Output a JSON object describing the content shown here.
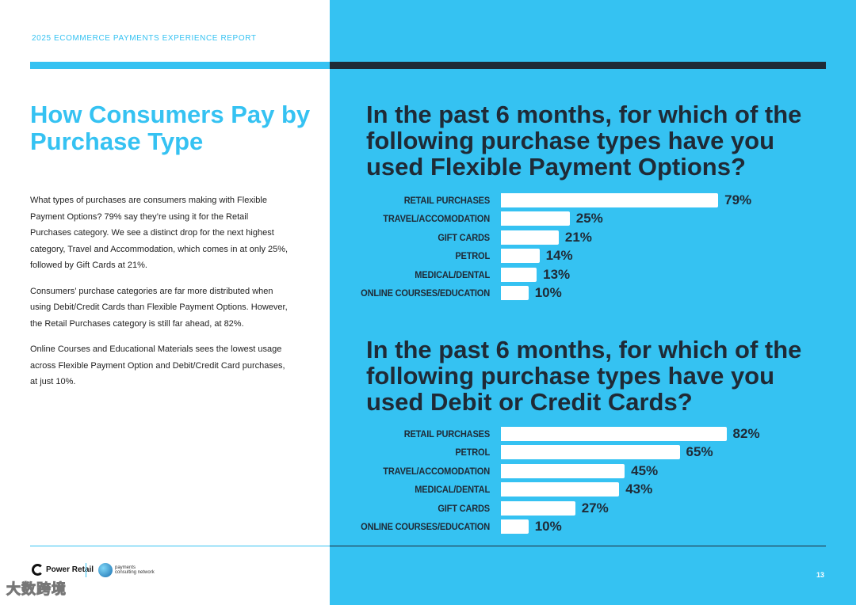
{
  "header": {
    "report_label": "2025 ECOMMERCE PAYMENTS EXPERIENCE REPORT"
  },
  "page": {
    "title": "How Consumers Pay by Purchase Type",
    "paragraphs": [
      "What types of purchases are consumers making with Flexible Payment Options? 79% say they’re using it for the Retail Purchases category. We see a distinct drop for the next highest category, Travel and Accommodation, which comes in at only 25%, followed by Gift Cards at 21%.",
      "Consumers’ purchase categories are far more distributed when using Debit/Credit Cards than Flexible Payment Options. However, the Retail Purchases category is still far ahead, at 82%.",
      "Online Courses and Educational Materials sees the lowest usage across Flexible Payment Option and Debit/Credit Card purchases, at just 10%."
    ],
    "page_number": "13"
  },
  "chart_data": [
    {
      "type": "bar",
      "orientation": "horizontal",
      "title": "In the past 6 months, for which of the following purchase types have you used Flexible Payment Options?",
      "categories": [
        "RETAIL PURCHASES",
        "TRAVEL/ACCOMODATION",
        "GIFT CARDS",
        "PETROL",
        "MEDICAL/DENTAL",
        "ONLINE COURSES/EDUCATION"
      ],
      "values": [
        79,
        25,
        21,
        14,
        13,
        10
      ],
      "labels": [
        "79%",
        "25%",
        "21%",
        "14%",
        "13%",
        "10%"
      ],
      "xlim": [
        0,
        100
      ],
      "bar_color": "#ffffff"
    },
    {
      "type": "bar",
      "orientation": "horizontal",
      "title": "In the past 6 months, for which of the following purchase types have you used Debit or Credit Cards?",
      "categories": [
        "RETAIL PURCHASES",
        "PETROL",
        "TRAVEL/ACCOMODATION",
        "MEDICAL/DENTAL",
        "GIFT CARDS",
        "ONLINE COURSES/EDUCATION"
      ],
      "values": [
        82,
        65,
        45,
        43,
        27,
        10
      ],
      "labels": [
        "82%",
        "65%",
        "45%",
        "43%",
        "27%",
        "10%"
      ],
      "xlim": [
        0,
        100
      ],
      "bar_color": "#ffffff"
    }
  ],
  "footer": {
    "power_retail_logo": "Power Retail",
    "pcn_logo": "payments consulting network",
    "watermark": "大数跨境"
  },
  "colors": {
    "accent": "#35c2f2",
    "dark": "#1f2a36"
  }
}
